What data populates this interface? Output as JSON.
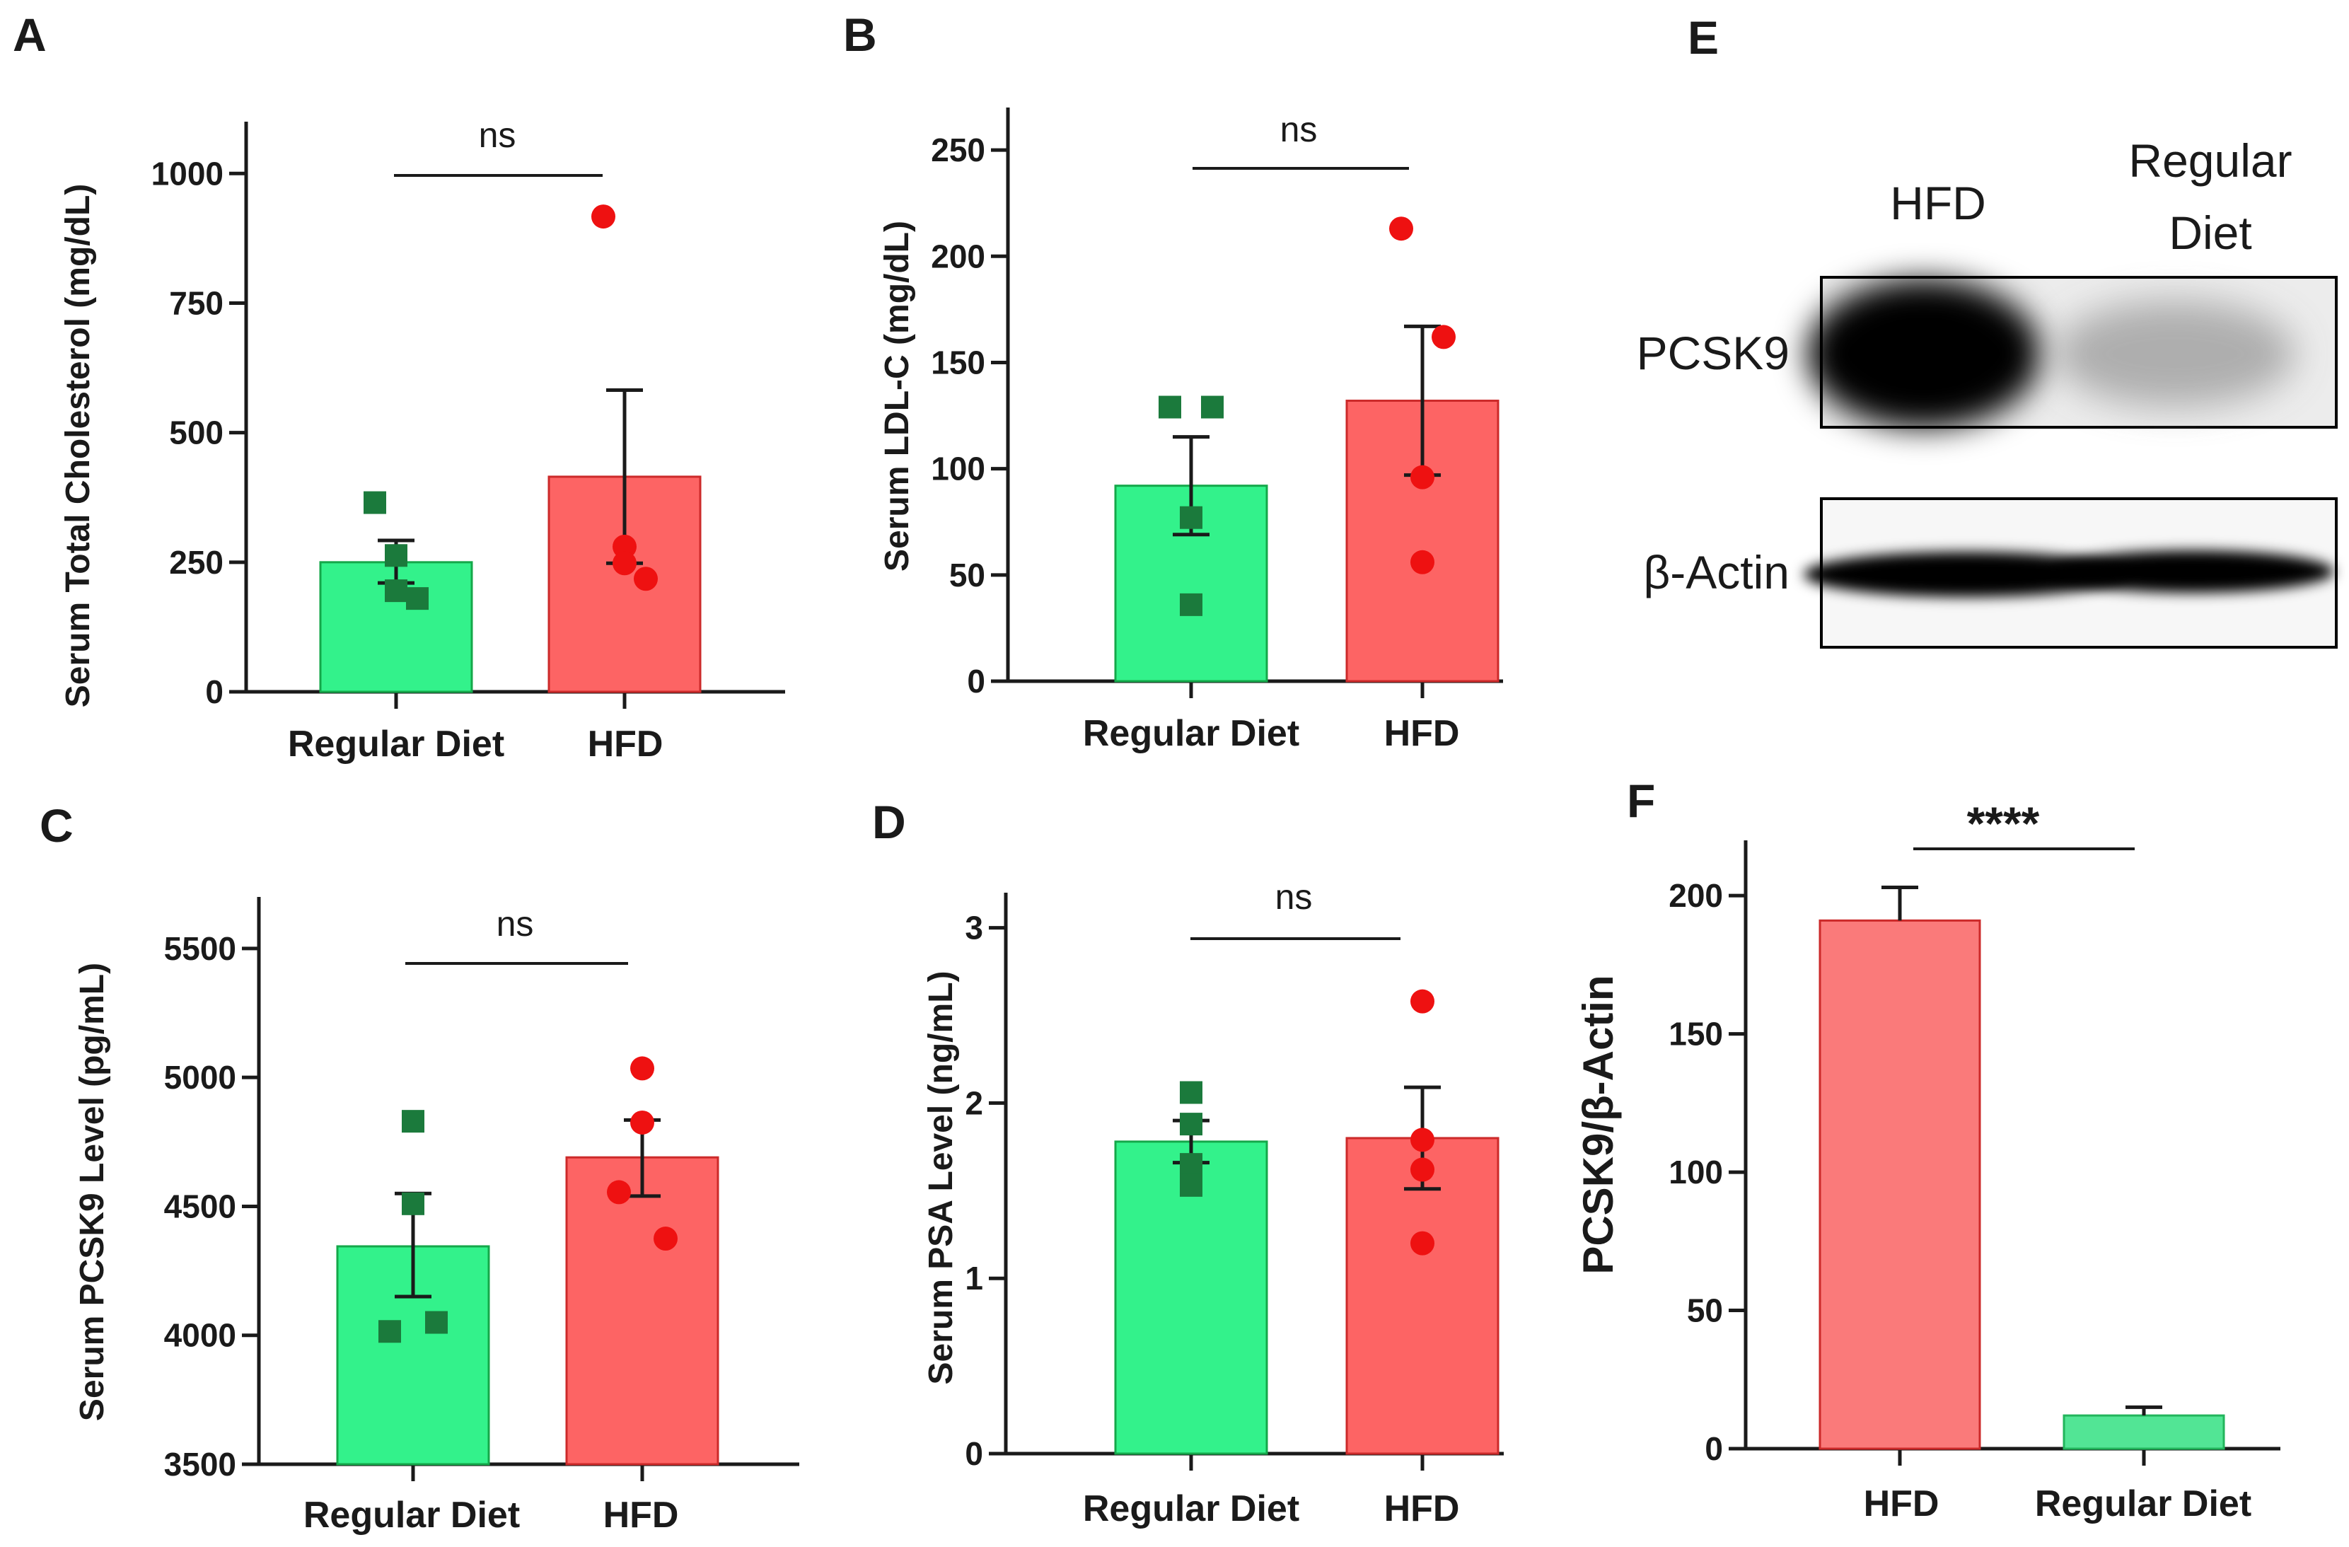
{
  "chart_data": [
    {
      "panel": "A",
      "type": "bar",
      "categories": [
        "Regular Diet",
        "HFD"
      ],
      "values": [
        250,
        415
      ],
      "errors": [
        [
          210,
          292
        ],
        [
          248,
          582
        ]
      ],
      "points": [
        [
          365,
          263,
          180,
          195
        ],
        [
          917,
          280,
          218,
          248
        ]
      ],
      "colors": [
        "#33f28b",
        "#fd6464"
      ],
      "point_colors": [
        "#1b7a3c",
        "#ee1111"
      ],
      "ylabel": "Serum Total Cholesterol (mg/dL)",
      "ylim": [
        0,
        1100
      ],
      "yticks": [
        0,
        250,
        500,
        750,
        1000
      ],
      "significance": "ns"
    },
    {
      "panel": "B",
      "type": "bar",
      "categories": [
        "Regular Diet",
        "HFD"
      ],
      "values": [
        92,
        132
      ],
      "errors": [
        [
          69,
          115
        ],
        [
          97,
          167
        ]
      ],
      "points": [
        [
          129,
          129,
          77,
          36
        ],
        [
          213,
          162,
          96,
          56
        ]
      ],
      "colors": [
        "#33f28b",
        "#fd6464"
      ],
      "point_colors": [
        "#1b7a3c",
        "#ee1111"
      ],
      "ylabel": "Serum LDL-C (mg/dL)",
      "ylim": [
        0,
        270
      ],
      "yticks": [
        0,
        50,
        100,
        150,
        200,
        250
      ],
      "significance": "ns"
    },
    {
      "panel": "C",
      "type": "bar",
      "categories": [
        "Regular Diet",
        "HFD"
      ],
      "values": [
        4345,
        4690
      ],
      "errors": [
        [
          4150,
          4550
        ],
        [
          4540,
          4835
        ]
      ],
      "points": [
        [
          4830,
          4510,
          4015,
          4050
        ],
        [
          5035,
          4825,
          4555,
          4375
        ]
      ],
      "colors": [
        "#33f28b",
        "#fd6464"
      ],
      "point_colors": [
        "#1b7a3c",
        "#ee1111"
      ],
      "ylabel": "Serum PCSK9 Level (pg/mL)",
      "ylim": [
        3500,
        5700
      ],
      "yticks": [
        3500,
        4000,
        4500,
        5000,
        5500
      ],
      "significance": "ns"
    },
    {
      "panel": "D",
      "type": "bar",
      "categories": [
        "Regular Diet",
        "HFD"
      ],
      "values": [
        1.78,
        1.8
      ],
      "errors": [
        [
          1.66,
          1.9
        ],
        [
          1.51,
          2.09
        ]
      ],
      "points": [
        [
          2.06,
          1.88,
          1.65,
          1.53
        ],
        [
          2.58,
          1.79,
          1.62,
          1.2
        ]
      ],
      "colors": [
        "#33f28b",
        "#fd6464"
      ],
      "point_colors": [
        "#1b7a3c",
        "#ee1111"
      ],
      "ylabel": "Serum PSA Level (ng/mL)",
      "ylim": [
        0,
        3.2
      ],
      "yticks": [
        0,
        1,
        2,
        3
      ],
      "significance": "ns"
    },
    {
      "panel": "F",
      "type": "bar",
      "categories": [
        "HFD",
        "Regular Diet"
      ],
      "values": [
        191,
        12
      ],
      "errors": [
        [
          191,
          203
        ],
        [
          12,
          15
        ]
      ],
      "points": [
        [],
        []
      ],
      "colors": [
        "#fa7a7a",
        "#52e595"
      ],
      "point_colors": [
        "#ee1111",
        "#1b7a3c"
      ],
      "ylabel": "PCSK9/β-Actin",
      "ylim": [
        0,
        220
      ],
      "yticks": [
        0,
        50,
        100,
        150,
        200
      ],
      "significance": "****"
    }
  ],
  "western_blot": {
    "panel": "E",
    "lane_labels": [
      "HFD",
      "Regular Diet"
    ],
    "lane_label_lines": [
      [
        "HFD"
      ],
      [
        "Regular",
        "Diet"
      ]
    ],
    "rows": [
      "PCSK9",
      "β-Actin"
    ]
  }
}
